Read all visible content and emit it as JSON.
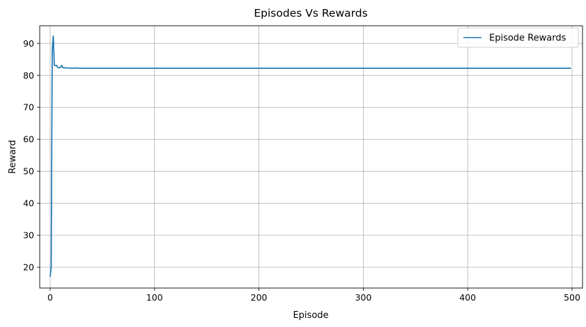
{
  "chart_data": {
    "type": "line",
    "title": "Episodes Vs Rewards",
    "xlabel": "Episode",
    "ylabel": "Reward",
    "xlim": [
      -10,
      510
    ],
    "ylim": [
      13.5,
      95.5
    ],
    "xticks": [
      0,
      100,
      200,
      300,
      400,
      500
    ],
    "yticks": [
      20,
      30,
      40,
      50,
      60,
      70,
      80,
      90
    ],
    "grid": true,
    "legend_position": "top-right",
    "series": [
      {
        "name": "Episode Rewards",
        "color": "#1f77b4",
        "x": [
          0,
          1,
          2,
          3,
          4,
          5,
          6,
          7,
          8,
          9,
          10,
          11,
          12,
          13,
          14,
          15,
          16,
          17,
          18,
          19,
          20,
          22,
          25,
          30,
          35,
          40,
          50,
          100,
          200,
          300,
          400,
          499
        ],
        "y": [
          17,
          20,
          88,
          92.3,
          83.2,
          83.0,
          83.1,
          82.6,
          82.3,
          82.4,
          82.5,
          83.1,
          82.5,
          82.3,
          82.4,
          82.3,
          82.3,
          82.3,
          82.3,
          82.2,
          82.3,
          82.2,
          82.3,
          82.2,
          82.2,
          82.2,
          82.2,
          82.2,
          82.2,
          82.2,
          82.2,
          82.2
        ]
      }
    ]
  }
}
